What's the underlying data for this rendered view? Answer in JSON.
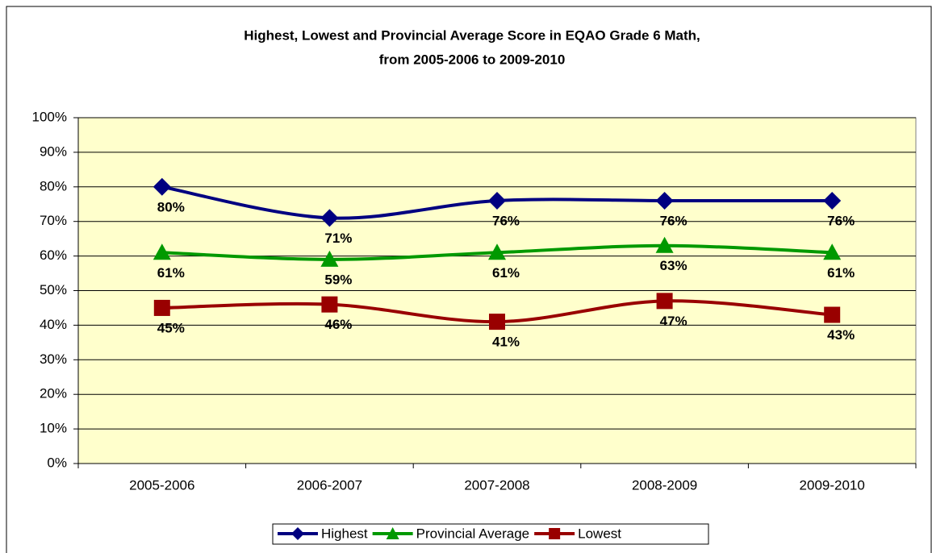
{
  "chart_data": {
    "type": "line",
    "title": [
      "Highest, Lowest and Provincial Average Score in EQAO Grade 6 Math,",
      "from 2005-2006 to 2009-2010"
    ],
    "categories": [
      "2005-2006",
      "2006-2007",
      "2007-2008",
      "2008-2009",
      "2009-2010"
    ],
    "series": [
      {
        "name": "Highest",
        "color": "#000080",
        "marker": "diamond",
        "values": [
          80,
          71,
          76,
          76,
          76
        ],
        "value_labels": [
          "80%",
          "71%",
          "76%",
          "76%",
          "76%"
        ]
      },
      {
        "name": "Provincial Average",
        "color": "#009900",
        "marker": "triangle",
        "values": [
          61,
          59,
          61,
          63,
          61
        ],
        "value_labels": [
          "61%",
          "59%",
          "61%",
          "63%",
          "61%"
        ]
      },
      {
        "name": "Lowest",
        "color": "#990000",
        "marker": "square",
        "values": [
          45,
          46,
          41,
          47,
          43
        ],
        "value_labels": [
          "45%",
          "46%",
          "41%",
          "47%",
          "43%"
        ]
      }
    ],
    "ylim": [
      0,
      100
    ],
    "yticks": [
      {
        "value": 0,
        "label": "0%"
      },
      {
        "value": 10,
        "label": "10%"
      },
      {
        "value": 20,
        "label": "20%"
      },
      {
        "value": 30,
        "label": "30%"
      },
      {
        "value": 40,
        "label": "40%"
      },
      {
        "value": 50,
        "label": "50%"
      },
      {
        "value": 60,
        "label": "60%"
      },
      {
        "value": 70,
        "label": "70%"
      },
      {
        "value": 80,
        "label": "80%"
      },
      {
        "value": 90,
        "label": "90%"
      },
      {
        "value": 100,
        "label": "100%"
      }
    ],
    "grid": true,
    "legend": "bottom",
    "plot_background": "#FFFFCC"
  }
}
